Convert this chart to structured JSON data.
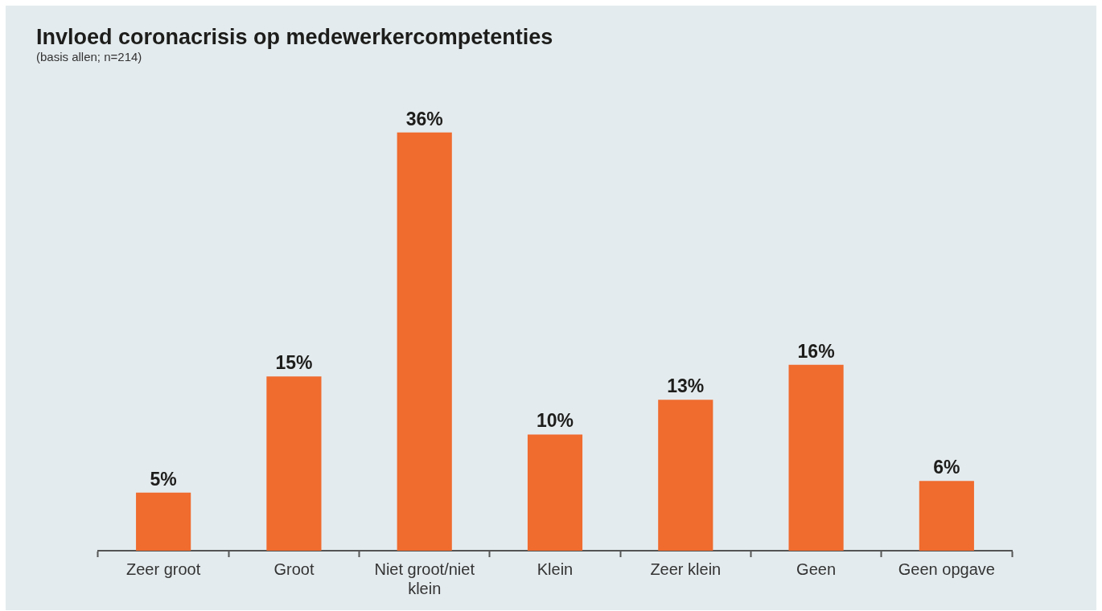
{
  "chart_data": {
    "type": "bar",
    "title": "Invloed coronacrisis op medewerkercompetenties",
    "subtitle": "(basis allen; n=214)",
    "categories": [
      "Zeer groot",
      "Groot",
      "Niet groot/niet klein",
      "Klein",
      "Zeer klein",
      "Geen",
      "Geen opgave"
    ],
    "values": [
      5,
      15,
      36,
      10,
      13,
      16,
      6
    ],
    "value_labels": [
      "5%",
      "15%",
      "36%",
      "10%",
      "13%",
      "16%",
      "6%"
    ],
    "color": "#ef6b2e",
    "grid": false,
    "legend": false
  }
}
